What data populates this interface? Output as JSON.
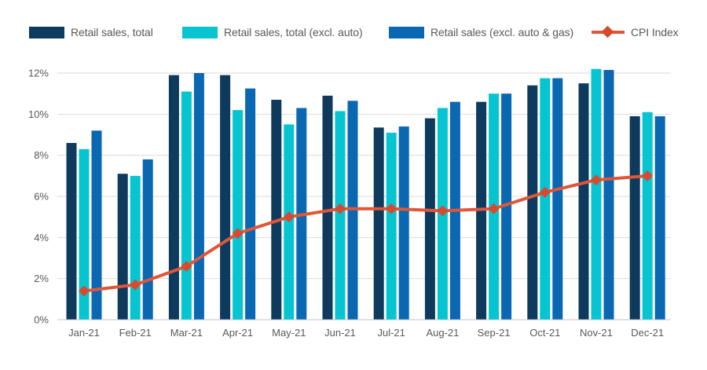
{
  "legend": {
    "items": [
      {
        "label": "Retail sales, total",
        "type": "swatch",
        "color": "#0E3A5E"
      },
      {
        "label": "Retail sales, total (excl. auto)",
        "type": "swatch",
        "color": "#06C5D1"
      },
      {
        "label": "Retail sales (excl. auto & gas)",
        "type": "swatch",
        "color": "#0A67B2"
      },
      {
        "label": "CPI Index",
        "type": "line-diamond",
        "color": "#DF5639",
        "marker_color": "#D8492E"
      }
    ]
  },
  "chart_data": {
    "type": "combo",
    "subtype": "grouped-bar-with-line",
    "title": "",
    "xlabel": "",
    "ylabel": "",
    "categories": [
      "Jan-21",
      "Feb-21",
      "Mar-21",
      "Apr-21",
      "May-21",
      "Jun-21",
      "Jul-21",
      "Aug-21",
      "Sep-21",
      "Oct-21",
      "Nov-21",
      "Dec-21"
    ],
    "bar_series": [
      {
        "name": "Retail sales, total",
        "color": "#0E3A5E",
        "values": [
          8.6,
          7.1,
          11.9,
          11.9,
          10.7,
          10.9,
          9.35,
          9.8,
          10.6,
          11.4,
          11.5,
          9.9
        ]
      },
      {
        "name": "Retail sales, total (excl. auto)",
        "color": "#06C5D1",
        "values": [
          8.3,
          7.0,
          11.1,
          10.2,
          9.5,
          10.15,
          9.1,
          10.3,
          11.0,
          11.75,
          12.2,
          10.1
        ]
      },
      {
        "name": "Retail sales (excl. auto & gas)",
        "color": "#0A67B2",
        "values": [
          9.2,
          7.8,
          12.0,
          11.25,
          10.3,
          10.65,
          9.4,
          10.6,
          11.0,
          11.75,
          12.15,
          9.9
        ]
      }
    ],
    "line_series": [
      {
        "name": "CPI Index",
        "color": "#DF5639",
        "marker": "diamond",
        "marker_color": "#D8492E",
        "values": [
          1.4,
          1.7,
          2.6,
          4.2,
          5.0,
          5.4,
          5.4,
          5.3,
          5.4,
          6.2,
          6.8,
          7.0
        ]
      }
    ],
    "y_axis": {
      "min": 0,
      "max": 12,
      "tick_values": [
        0,
        2,
        4,
        6,
        8,
        10,
        12
      ],
      "ticks": [
        "0%",
        "2%",
        "4%",
        "6%",
        "8%",
        "10%",
        "12%"
      ]
    },
    "grid": true,
    "legend_position": "top",
    "background": "#FFFFFF",
    "grid_color": "#DBDBDB",
    "axis_line_color": "#C2C5C8",
    "label_color": "#595959"
  }
}
